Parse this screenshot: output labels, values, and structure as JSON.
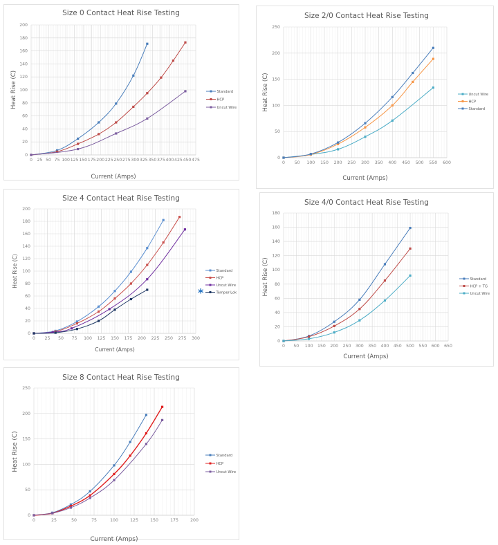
{
  "chart_data": [
    {
      "type": "line",
      "title": "Size 0 Contact Heat Rise Testing",
      "xlabel": "Current (Amps)",
      "ylabel": "Heat Rise (C)",
      "xlim": [
        0,
        475
      ],
      "xstep": 25,
      "ylim": [
        0,
        200
      ],
      "ystep": 20,
      "grid": true,
      "legend_position": "right",
      "xticks": [
        "0",
        "25",
        "50",
        "75",
        "100",
        "125",
        "150",
        "175",
        "200",
        "225",
        "250",
        "275",
        "300",
        "325",
        "350",
        "375",
        "400",
        "425",
        "450",
        "475"
      ],
      "yticks": [
        "0",
        "20",
        "40",
        "60",
        "80",
        "100",
        "120",
        "140",
        "160",
        "180",
        "200"
      ],
      "series": [
        {
          "name": "Standard",
          "color": "#4a7ebb",
          "x": [
            0,
            75,
            135,
            195,
            245,
            295,
            335
          ],
          "y": [
            0,
            7,
            25,
            50,
            79,
            122,
            171
          ]
        },
        {
          "name": "HCP",
          "color": "#be4b48",
          "x": [
            0,
            75,
            135,
            195,
            245,
            295,
            335,
            375,
            410,
            445
          ],
          "y": [
            0,
            5,
            17,
            32,
            50,
            74,
            95,
            119,
            145,
            173
          ]
        },
        {
          "name": "Uncut Wire",
          "color": "#7d5fa0",
          "x": [
            0,
            135,
            245,
            335,
            445
          ],
          "y": [
            0,
            9,
            33,
            56,
            98
          ]
        }
      ]
    },
    {
      "type": "line",
      "title": "Size 2/0 Contact Heat Rise Testing",
      "xlabel": "Current (Amps)",
      "ylabel": "Heat Rise (C)",
      "xlim": [
        0,
        600
      ],
      "xstep": 50,
      "ylim": [
        0,
        250
      ],
      "ystep": 50,
      "grid": true,
      "legend_position": "right",
      "xticks": [
        "0",
        "50",
        "100",
        "150",
        "200",
        "250",
        "300",
        "350",
        "400",
        "450",
        "500",
        "550",
        "600"
      ],
      "yticks": [
        "0",
        "50",
        "100",
        "150",
        "200",
        "250"
      ],
      "series": [
        {
          "name": "Uncut Wire",
          "color": "#4bacc6",
          "x": [
            0,
            100,
            200,
            300,
            400,
            550
          ],
          "y": [
            0,
            6,
            16,
            40,
            71,
            134
          ]
        },
        {
          "name": "HCP",
          "color": "#f79646",
          "x": [
            0,
            100,
            200,
            300,
            400,
            475,
            550
          ],
          "y": [
            0,
            6,
            26,
            58,
            100,
            145,
            189
          ]
        },
        {
          "name": "Standard",
          "color": "#4a7ebb",
          "x": [
            0,
            100,
            200,
            300,
            400,
            475,
            550
          ],
          "y": [
            0,
            7,
            29,
            66,
            116,
            162,
            210
          ]
        }
      ]
    },
    {
      "type": "line",
      "title": "Size 4 Contact Heat Rise Testing",
      "xlabel": "Current (Amps)",
      "ylabel": "Heat Rise (C)",
      "xlim": [
        0,
        300
      ],
      "xstep": 25,
      "ylim": [
        0,
        200
      ],
      "ystep": 20,
      "grid": true,
      "legend_position": "right",
      "annotation": "*",
      "xticks": [
        "0",
        "25",
        "50",
        "75",
        "100",
        "125",
        "150",
        "175",
        "200",
        "225",
        "250",
        "275",
        "300"
      ],
      "yticks": [
        "0",
        "20",
        "40",
        "60",
        "80",
        "100",
        "120",
        "140",
        "160",
        "180",
        "200"
      ],
      "series": [
        {
          "name": "Standard",
          "color": "#5b8fd0",
          "x": [
            0,
            40,
            80,
            120,
            150,
            180,
            210,
            240
          ],
          "y": [
            0,
            4,
            19,
            43,
            68,
            99,
            137,
            182
          ]
        },
        {
          "name": "HCP",
          "color": "#c9504c",
          "x": [
            0,
            40,
            80,
            120,
            150,
            180,
            210,
            240,
            270
          ],
          "y": [
            0,
            3,
            16,
            35,
            56,
            80,
            110,
            146,
            187
          ]
        },
        {
          "name": "Uncut Wire",
          "color": "#7030a0",
          "x": [
            0,
            35,
            70,
            140,
            210,
            280
          ],
          "y": [
            0,
            2,
            8,
            39,
            87,
            167
          ]
        },
        {
          "name": "Temper-Lok",
          "color": "#1f3864",
          "x": [
            0,
            40,
            80,
            120,
            150,
            180,
            210
          ],
          "y": [
            0,
            1,
            7,
            20,
            38,
            55,
            70
          ]
        }
      ]
    },
    {
      "type": "line",
      "title": "Size 4/0 Contact Heat Rise Testing",
      "xlabel": "Current (Amps)",
      "ylabel": "Heat Rise (C)",
      "xlim": [
        0,
        650
      ],
      "xstep": 50,
      "ylim": [
        0,
        180
      ],
      "ystep": 20,
      "grid": true,
      "legend_position": "right",
      "xticks": [
        "0",
        "50",
        "100",
        "150",
        "200",
        "250",
        "300",
        "350",
        "400",
        "450",
        "500",
        "550",
        "600",
        "650"
      ],
      "yticks": [
        "0",
        "20",
        "40",
        "60",
        "80",
        "100",
        "120",
        "140",
        "160",
        "180"
      ],
      "series": [
        {
          "name": "Standard",
          "color": "#4a7ebb",
          "x": [
            0,
            100,
            200,
            300,
            400,
            500
          ],
          "y": [
            0,
            7,
            27,
            58,
            108,
            159
          ]
        },
        {
          "name": "HCP + TG",
          "color": "#be4b48",
          "x": [
            0,
            100,
            200,
            300,
            400,
            500
          ],
          "y": [
            0,
            6,
            21,
            45,
            85,
            130
          ]
        },
        {
          "name": "Uncut Wire",
          "color": "#4bacc6",
          "x": [
            0,
            100,
            200,
            300,
            400,
            500
          ],
          "y": [
            0,
            3,
            12,
            29,
            57,
            92
          ]
        }
      ]
    },
    {
      "type": "line",
      "title": "Size 8 Contact Heat Rise Testing",
      "xlabel": "Current (Amps)",
      "ylabel": "Heat Rise (C)",
      "xlim": [
        0,
        200
      ],
      "xstep": 25,
      "ylim": [
        0,
        250
      ],
      "ystep": 50,
      "grid": true,
      "legend_position": "right",
      "xticks": [
        "0",
        "25",
        "50",
        "75",
        "100",
        "125",
        "150",
        "175",
        "200"
      ],
      "yticks": [
        "0",
        "50",
        "100",
        "150",
        "200",
        "250"
      ],
      "series": [
        {
          "name": "Standard",
          "color": "#4a7ebb",
          "x": [
            0,
            23,
            46,
            70,
            100,
            120,
            140
          ],
          "y": [
            0,
            5,
            21,
            47,
            98,
            144,
            197
          ]
        },
        {
          "name": "HCP",
          "color": "#e02020",
          "x": [
            0,
            23,
            46,
            70,
            100,
            120,
            140,
            160
          ],
          "y": [
            0,
            4,
            18,
            39,
            81,
            117,
            161,
            213
          ]
        },
        {
          "name": "Uncut Wire",
          "color": "#7d5fa0",
          "x": [
            0,
            23,
            46,
            70,
            100,
            140,
            160
          ],
          "y": [
            0,
            4,
            15,
            34,
            69,
            140,
            187
          ]
        }
      ]
    }
  ]
}
